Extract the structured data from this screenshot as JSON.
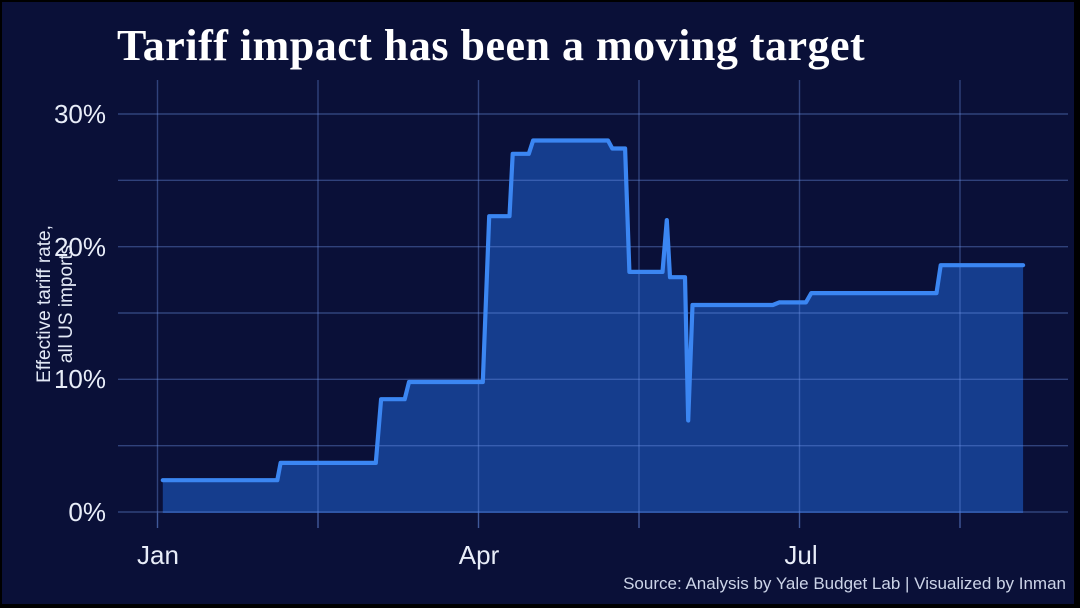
{
  "chart_data": {
    "type": "area",
    "title": "Tariff impact has been a moving target",
    "ylabel_line1": "Effective tariff rate,",
    "ylabel_line2": "all US imports",
    "xlabel": "",
    "x_tick_labels": [
      "Jan",
      "Apr",
      "Jul"
    ],
    "y_tick_labels": [
      "0%",
      "10%",
      "20%",
      "30%"
    ],
    "ylim": [
      0,
      30
    ],
    "grid": true,
    "legend_position": "none",
    "y_gridlines_pct": [
      0,
      5,
      10,
      15,
      20,
      25,
      30
    ],
    "x_gridlines_months": [
      0,
      1.5,
      3,
      4.5,
      6,
      7.5
    ],
    "x_tick_months": [
      0,
      3,
      6
    ],
    "series": [
      {
        "name": "Effective tariff rate, all US imports (2025)",
        "step_points_month_value": [
          [
            0.05,
            2.4
          ],
          [
            1.12,
            2.4
          ],
          [
            1.15,
            3.7
          ],
          [
            2.04,
            3.7
          ],
          [
            2.09,
            8.5
          ],
          [
            2.31,
            8.5
          ],
          [
            2.35,
            9.8
          ],
          [
            3.04,
            9.8
          ],
          [
            3.1,
            22.3
          ],
          [
            3.29,
            22.3
          ],
          [
            3.32,
            27.0
          ],
          [
            3.47,
            27.0
          ],
          [
            3.51,
            28.0
          ],
          [
            4.21,
            28.0
          ],
          [
            4.25,
            27.4
          ],
          [
            4.37,
            27.4
          ],
          [
            4.41,
            18.1
          ],
          [
            4.72,
            18.1
          ],
          [
            4.76,
            22.0
          ],
          [
            4.79,
            17.7
          ],
          [
            4.93,
            17.7
          ],
          [
            4.96,
            6.9
          ],
          [
            5.0,
            15.6
          ],
          [
            5.75,
            15.6
          ],
          [
            5.81,
            15.8
          ],
          [
            6.06,
            15.8
          ],
          [
            6.11,
            16.5
          ],
          [
            7.28,
            16.5
          ],
          [
            7.32,
            18.6
          ],
          [
            8.09,
            18.6
          ]
        ],
        "key_events_date_value": [
          [
            "Jan 2",
            2.4
          ],
          [
            "Feb 4",
            3.7
          ],
          [
            "Mar 4",
            8.5
          ],
          [
            "Mar 12",
            9.8
          ],
          [
            "Apr 3",
            22.3
          ],
          [
            "Apr 10",
            27.0
          ],
          [
            "Apr 15",
            28.0
          ],
          [
            "May 8",
            27.4
          ],
          [
            "May 13",
            18.1
          ],
          [
            "May 24 (spike)",
            22.0
          ],
          [
            "May 27",
            17.7
          ],
          [
            "May 30 (dip)",
            6.9
          ],
          [
            "Jun 2",
            15.6
          ],
          [
            "Jun 26",
            15.8
          ],
          [
            "Jul 4",
            16.5
          ],
          [
            "Aug 8",
            18.6
          ]
        ]
      }
    ],
    "colors": {
      "background": "#0a1038",
      "frame": "#000000",
      "line": "#3b86f2",
      "fill": "#1c5cc6",
      "fill_opacity": 0.6,
      "grid": "#6e96eb",
      "grid_opacity": 0.38,
      "tick": "#6e96eb",
      "tick_opacity": 0.55
    }
  },
  "footer": {
    "source": "Source: Analysis by Yale Budget Lab | Visualized by Inman"
  }
}
